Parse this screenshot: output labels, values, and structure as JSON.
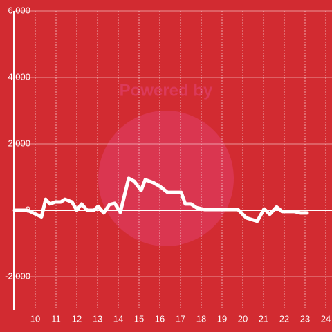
{
  "chart_data": {
    "type": "line",
    "watermark": "Powered by",
    "x": [
      9.0,
      9.63,
      10.3,
      10.5,
      10.7,
      10.97,
      11.23,
      11.43,
      11.77,
      12.0,
      12.23,
      12.5,
      12.83,
      13.03,
      13.3,
      13.57,
      13.83,
      14.1,
      14.5,
      14.77,
      15.1,
      15.3,
      15.7,
      16.03,
      16.37,
      17.03,
      17.23,
      17.5,
      17.77,
      18.17,
      19.77,
      20.17,
      20.7,
      21.03,
      21.3,
      21.63,
      21.9,
      22.5,
      22.77,
      23.1
    ],
    "series": [
      {
        "color": "#ffffff",
        "values": [
          0,
          0,
          -200,
          330,
          190,
          250,
          250,
          330,
          250,
          0,
          190,
          0,
          0,
          120,
          -80,
          170,
          210,
          -60,
          960,
          875,
          600,
          920,
          830,
          710,
          540,
          540,
          190,
          190,
          80,
          20,
          20,
          -230,
          -330,
          40,
          -120,
          100,
          -40,
          -40,
          -80,
          -80
        ]
      }
    ],
    "xlim": [
      9,
      24.3
    ],
    "xticks": [
      10,
      11,
      12,
      13,
      14,
      15,
      16,
      17,
      18,
      19,
      20,
      21,
      22,
      23,
      24
    ],
    "ylim": [
      -3000,
      6000
    ],
    "yticks": [
      {
        "value": 6000,
        "label": "6,000"
      },
      {
        "value": 4000,
        "label": "4,000"
      },
      {
        "value": 2000,
        "label": "2,000"
      },
      0,
      {
        "value": -2000,
        "label": "-2,000"
      }
    ],
    "grid": true
  }
}
